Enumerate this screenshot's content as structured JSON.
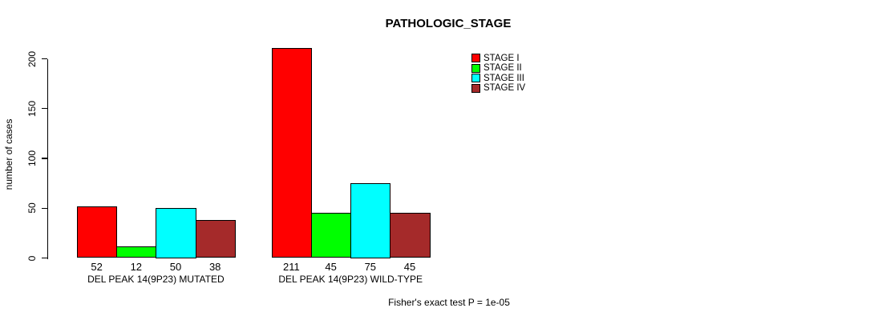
{
  "title": "PATHOLOGIC_STAGE",
  "chart_data": {
    "type": "bar",
    "title": "PATHOLOGIC_STAGE",
    "xlabel": "",
    "ylabel": "number of cases",
    "categories": [
      "DEL PEAK 14(9P23) MUTATED",
      "DEL PEAK 14(9P23) WILD-TYPE"
    ],
    "series": [
      {
        "name": "STAGE I",
        "color": "#FF0000",
        "values": [
          52,
          211
        ]
      },
      {
        "name": "STAGE II",
        "color": "#00FF00",
        "values": [
          12,
          45
        ]
      },
      {
        "name": "STAGE III",
        "color": "#00FFFF",
        "values": [
          50,
          75
        ]
      },
      {
        "name": "STAGE IV",
        "color": "#A52A2A",
        "values": [
          38,
          45
        ]
      }
    ],
    "yticks": [
      0,
      50,
      100,
      150,
      200
    ],
    "ylim": [
      0,
      200
    ],
    "grid": false,
    "bar_value_labels_shown": true,
    "legend_position": "top-right",
    "legend_entries": [
      "STAGE I",
      "STAGE II",
      "STAGE III",
      "STAGE IV"
    ],
    "annotation": "Fisher's exact test P = 1e-05"
  }
}
